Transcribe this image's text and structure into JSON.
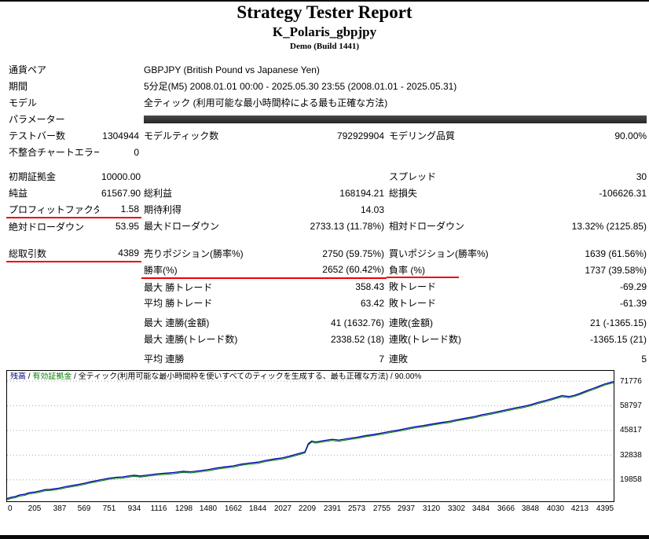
{
  "header": {
    "title": "Strategy Tester Report",
    "symbol": "K_Polaris_gbpjpy",
    "build": "Demo (Build 1441)"
  },
  "table": {
    "rows": [
      {
        "cells": [
          {
            "t": "通貨ペア",
            "n": "currency-pair-label"
          },
          {
            "t": ""
          },
          {
            "t": "GBPJPY (British Pound vs Japanese Yen)",
            "s": 4,
            "n": "currency-pair-value"
          }
        ]
      },
      {
        "cells": [
          {
            "t": "期間",
            "n": "period-label"
          },
          {
            "t": ""
          },
          {
            "t": "5分足(M5) 2008.01.01 00:00 - 2025.05.30 23:55 (2008.01.01 - 2025.05.31)",
            "s": 4,
            "n": "period-value"
          }
        ]
      },
      {
        "cells": [
          {
            "t": "モデル",
            "n": "model-label"
          },
          {
            "t": ""
          },
          {
            "t": "全ティック (利用可能な最小時間枠による最も正確な方法)",
            "s": 4,
            "n": "model-value"
          }
        ]
      },
      {
        "cells": [
          {
            "t": "パラメーター",
            "n": "parameters-label"
          },
          {
            "t": ""
          },
          {
            "bar": true,
            "s": 4,
            "n": "parameters-bar-cell"
          }
        ]
      },
      {
        "cells": [
          {
            "t": "テストバー数"
          },
          {
            "t": "1304944",
            "a": "r"
          },
          {
            "t": "モデルティック数"
          },
          {
            "t": "792929904",
            "a": "r"
          },
          {
            "t": "モデリング品質"
          },
          {
            "t": "90.00%",
            "a": "r"
          }
        ]
      },
      {
        "cells": [
          {
            "t": "不整合チャートエラー"
          },
          {
            "t": "0",
            "a": "r"
          },
          {
            "t": ""
          },
          {
            "t": ""
          },
          {
            "t": ""
          },
          {
            "t": ""
          }
        ]
      },
      {
        "spacer": "sm"
      },
      {
        "cells": [
          {
            "t": "初期証拠金"
          },
          {
            "t": "10000.00",
            "a": "r"
          },
          {
            "t": ""
          },
          {
            "t": ""
          },
          {
            "t": "スプレッド"
          },
          {
            "t": "30",
            "a": "r"
          }
        ]
      },
      {
        "cells": [
          {
            "t": "純益"
          },
          {
            "t": "61567.90",
            "a": "r"
          },
          {
            "t": "総利益"
          },
          {
            "t": "168194.21",
            "a": "r"
          },
          {
            "t": "総損失"
          },
          {
            "t": "-106626.31",
            "a": "r"
          }
        ]
      },
      {
        "cells": [
          {
            "t": "プロフィットファクタ",
            "u": true,
            "n": "profit-factor-label"
          },
          {
            "t": "1.58",
            "a": "r",
            "u": true,
            "n": "profit-factor-value"
          },
          {
            "t": "期待利得"
          },
          {
            "t": "14.03",
            "a": "r"
          },
          {
            "t": ""
          },
          {
            "t": ""
          }
        ]
      },
      {
        "cells": [
          {
            "t": "絶対ドローダウン"
          },
          {
            "t": "53.95",
            "a": "r"
          },
          {
            "t": "最大ドローダウン"
          },
          {
            "t": "2733.13 (11.78%)",
            "a": "r"
          },
          {
            "t": "相対ドローダウン"
          },
          {
            "t": "13.32% (2125.85)",
            "a": "r"
          }
        ]
      },
      {
        "spacer": "md"
      },
      {
        "cells": [
          {
            "t": "総取引数",
            "u": true,
            "n": "total-trades-label"
          },
          {
            "t": "4389",
            "a": "r",
            "u": true,
            "n": "total-trades-value"
          },
          {
            "t": "売りポジション(勝率%)"
          },
          {
            "t": "2750 (59.75%)",
            "a": "r"
          },
          {
            "t": "買いポジション(勝率%)"
          },
          {
            "t": "1639 (61.56%)",
            "a": "r"
          }
        ]
      },
      {
        "cells": [
          {
            "t": ""
          },
          {
            "t": ""
          },
          {
            "t": "勝率(%)",
            "u": true,
            "n": "win-rate-label"
          },
          {
            "t": "2652 (60.42%)",
            "a": "r",
            "u": true,
            "n": "win-rate-value"
          },
          {
            "t": "負率 (%)",
            "ext": true
          },
          {
            "t": "1737 (39.58%)",
            "a": "r"
          }
        ]
      },
      {
        "cells": [
          {
            "t": ""
          },
          {
            "t": ""
          },
          {
            "t": "最大 勝トレード"
          },
          {
            "t": "358.43",
            "a": "r"
          },
          {
            "t": "敗トレード"
          },
          {
            "t": "-69.29",
            "a": "r"
          }
        ]
      },
      {
        "cells": [
          {
            "t": ""
          },
          {
            "t": ""
          },
          {
            "t": "平均 勝トレード"
          },
          {
            "t": "63.42",
            "a": "r"
          },
          {
            "t": "敗トレード"
          },
          {
            "t": "-61.39",
            "a": "r"
          }
        ]
      },
      {
        "spacer": "xs"
      },
      {
        "cells": [
          {
            "t": ""
          },
          {
            "t": ""
          },
          {
            "t": "最大 連勝(金額)"
          },
          {
            "t": "41 (1632.76)",
            "a": "r"
          },
          {
            "t": "連敗(金額)"
          },
          {
            "t": "21 (-1365.15)",
            "a": "r"
          }
        ]
      },
      {
        "cells": [
          {
            "t": ""
          },
          {
            "t": ""
          },
          {
            "t": "最大 連勝(トレード数)"
          },
          {
            "t": "2338.52 (18)",
            "a": "r"
          },
          {
            "t": "連敗(トレード数)"
          },
          {
            "t": "-1365.15 (21)",
            "a": "r"
          }
        ]
      },
      {
        "spacer": "xs"
      },
      {
        "cells": [
          {
            "t": ""
          },
          {
            "t": ""
          },
          {
            "t": "平均 連勝"
          },
          {
            "t": "7",
            "a": "r"
          },
          {
            "t": "連敗"
          },
          {
            "t": "5",
            "a": "r"
          }
        ]
      }
    ]
  },
  "chart_data": {
    "type": "line",
    "title": "残高 / 有効証拠金",
    "caption": {
      "balance_label": "残高",
      "equity_label": "有効証拠金",
      "separator": " / ",
      "model_text": "全ティック(利用可能な最小時間枠を使いすべてのティックを生成する、最も正確な方法)",
      "quality": "90.00%"
    },
    "colors": {
      "balance": "#0000b4",
      "equity": "#007d00",
      "grid": "#a8a8a8",
      "balance_label": "#00007a"
    },
    "xlim": [
      0,
      4460
    ],
    "ylim": [
      8600,
      77200
    ],
    "x_ticks": [
      0,
      205,
      387,
      569,
      751,
      934,
      1116,
      1298,
      1480,
      1662,
      1844,
      2027,
      2209,
      2391,
      2573,
      2755,
      2937,
      3120,
      3302,
      3484,
      3666,
      3848,
      4030,
      4213,
      4395
    ],
    "y_ticks": [
      19858,
      32838,
      45817,
      58797,
      71776
    ],
    "series": [
      {
        "name": "残高",
        "points": [
          [
            0,
            10000
          ],
          [
            30,
            10700
          ],
          [
            60,
            11100
          ],
          [
            90,
            11900
          ],
          [
            130,
            12300
          ],
          [
            160,
            13100
          ],
          [
            205,
            13500
          ],
          [
            240,
            14000
          ],
          [
            280,
            14700
          ],
          [
            320,
            14900
          ],
          [
            387,
            15600
          ],
          [
            430,
            16300
          ],
          [
            470,
            16800
          ],
          [
            520,
            17400
          ],
          [
            569,
            18100
          ],
          [
            610,
            18800
          ],
          [
            660,
            19500
          ],
          [
            700,
            20100
          ],
          [
            751,
            20800
          ],
          [
            800,
            21200
          ],
          [
            850,
            21400
          ],
          [
            900,
            22000
          ],
          [
            934,
            22300
          ],
          [
            980,
            21900
          ],
          [
            1030,
            22400
          ],
          [
            1080,
            22800
          ],
          [
            1116,
            23100
          ],
          [
            1170,
            23400
          ],
          [
            1220,
            23700
          ],
          [
            1298,
            24400
          ],
          [
            1350,
            24100
          ],
          [
            1420,
            24700
          ],
          [
            1480,
            25300
          ],
          [
            1540,
            26100
          ],
          [
            1600,
            26700
          ],
          [
            1662,
            27200
          ],
          [
            1720,
            28100
          ],
          [
            1780,
            28700
          ],
          [
            1844,
            29200
          ],
          [
            1900,
            30100
          ],
          [
            1960,
            30800
          ],
          [
            2027,
            31500
          ],
          [
            2080,
            32400
          ],
          [
            2140,
            33600
          ],
          [
            2190,
            34600
          ],
          [
            2215,
            38900
          ],
          [
            2240,
            40300
          ],
          [
            2270,
            39800
          ],
          [
            2320,
            40400
          ],
          [
            2391,
            41200
          ],
          [
            2440,
            40800
          ],
          [
            2500,
            41500
          ],
          [
            2573,
            42300
          ],
          [
            2640,
            43200
          ],
          [
            2700,
            43800
          ],
          [
            2755,
            44500
          ],
          [
            2820,
            45400
          ],
          [
            2880,
            46100
          ],
          [
            2937,
            46900
          ],
          [
            3000,
            47800
          ],
          [
            3060,
            48400
          ],
          [
            3120,
            49200
          ],
          [
            3190,
            50000
          ],
          [
            3250,
            50600
          ],
          [
            3302,
            51400
          ],
          [
            3370,
            52300
          ],
          [
            3440,
            53200
          ],
          [
            3484,
            54000
          ],
          [
            3550,
            54900
          ],
          [
            3620,
            55900
          ],
          [
            3666,
            56600
          ],
          [
            3730,
            57600
          ],
          [
            3790,
            58400
          ],
          [
            3848,
            59400
          ],
          [
            3910,
            60700
          ],
          [
            3970,
            61800
          ],
          [
            4030,
            63100
          ],
          [
            4080,
            64200
          ],
          [
            4130,
            63700
          ],
          [
            4170,
            64300
          ],
          [
            4213,
            65400
          ],
          [
            4260,
            66700
          ],
          [
            4310,
            68000
          ],
          [
            4350,
            69100
          ],
          [
            4395,
            70300
          ],
          [
            4430,
            71000
          ],
          [
            4460,
            71568
          ]
        ]
      },
      {
        "name": "有効証拠金",
        "same_as": 0
      }
    ]
  }
}
